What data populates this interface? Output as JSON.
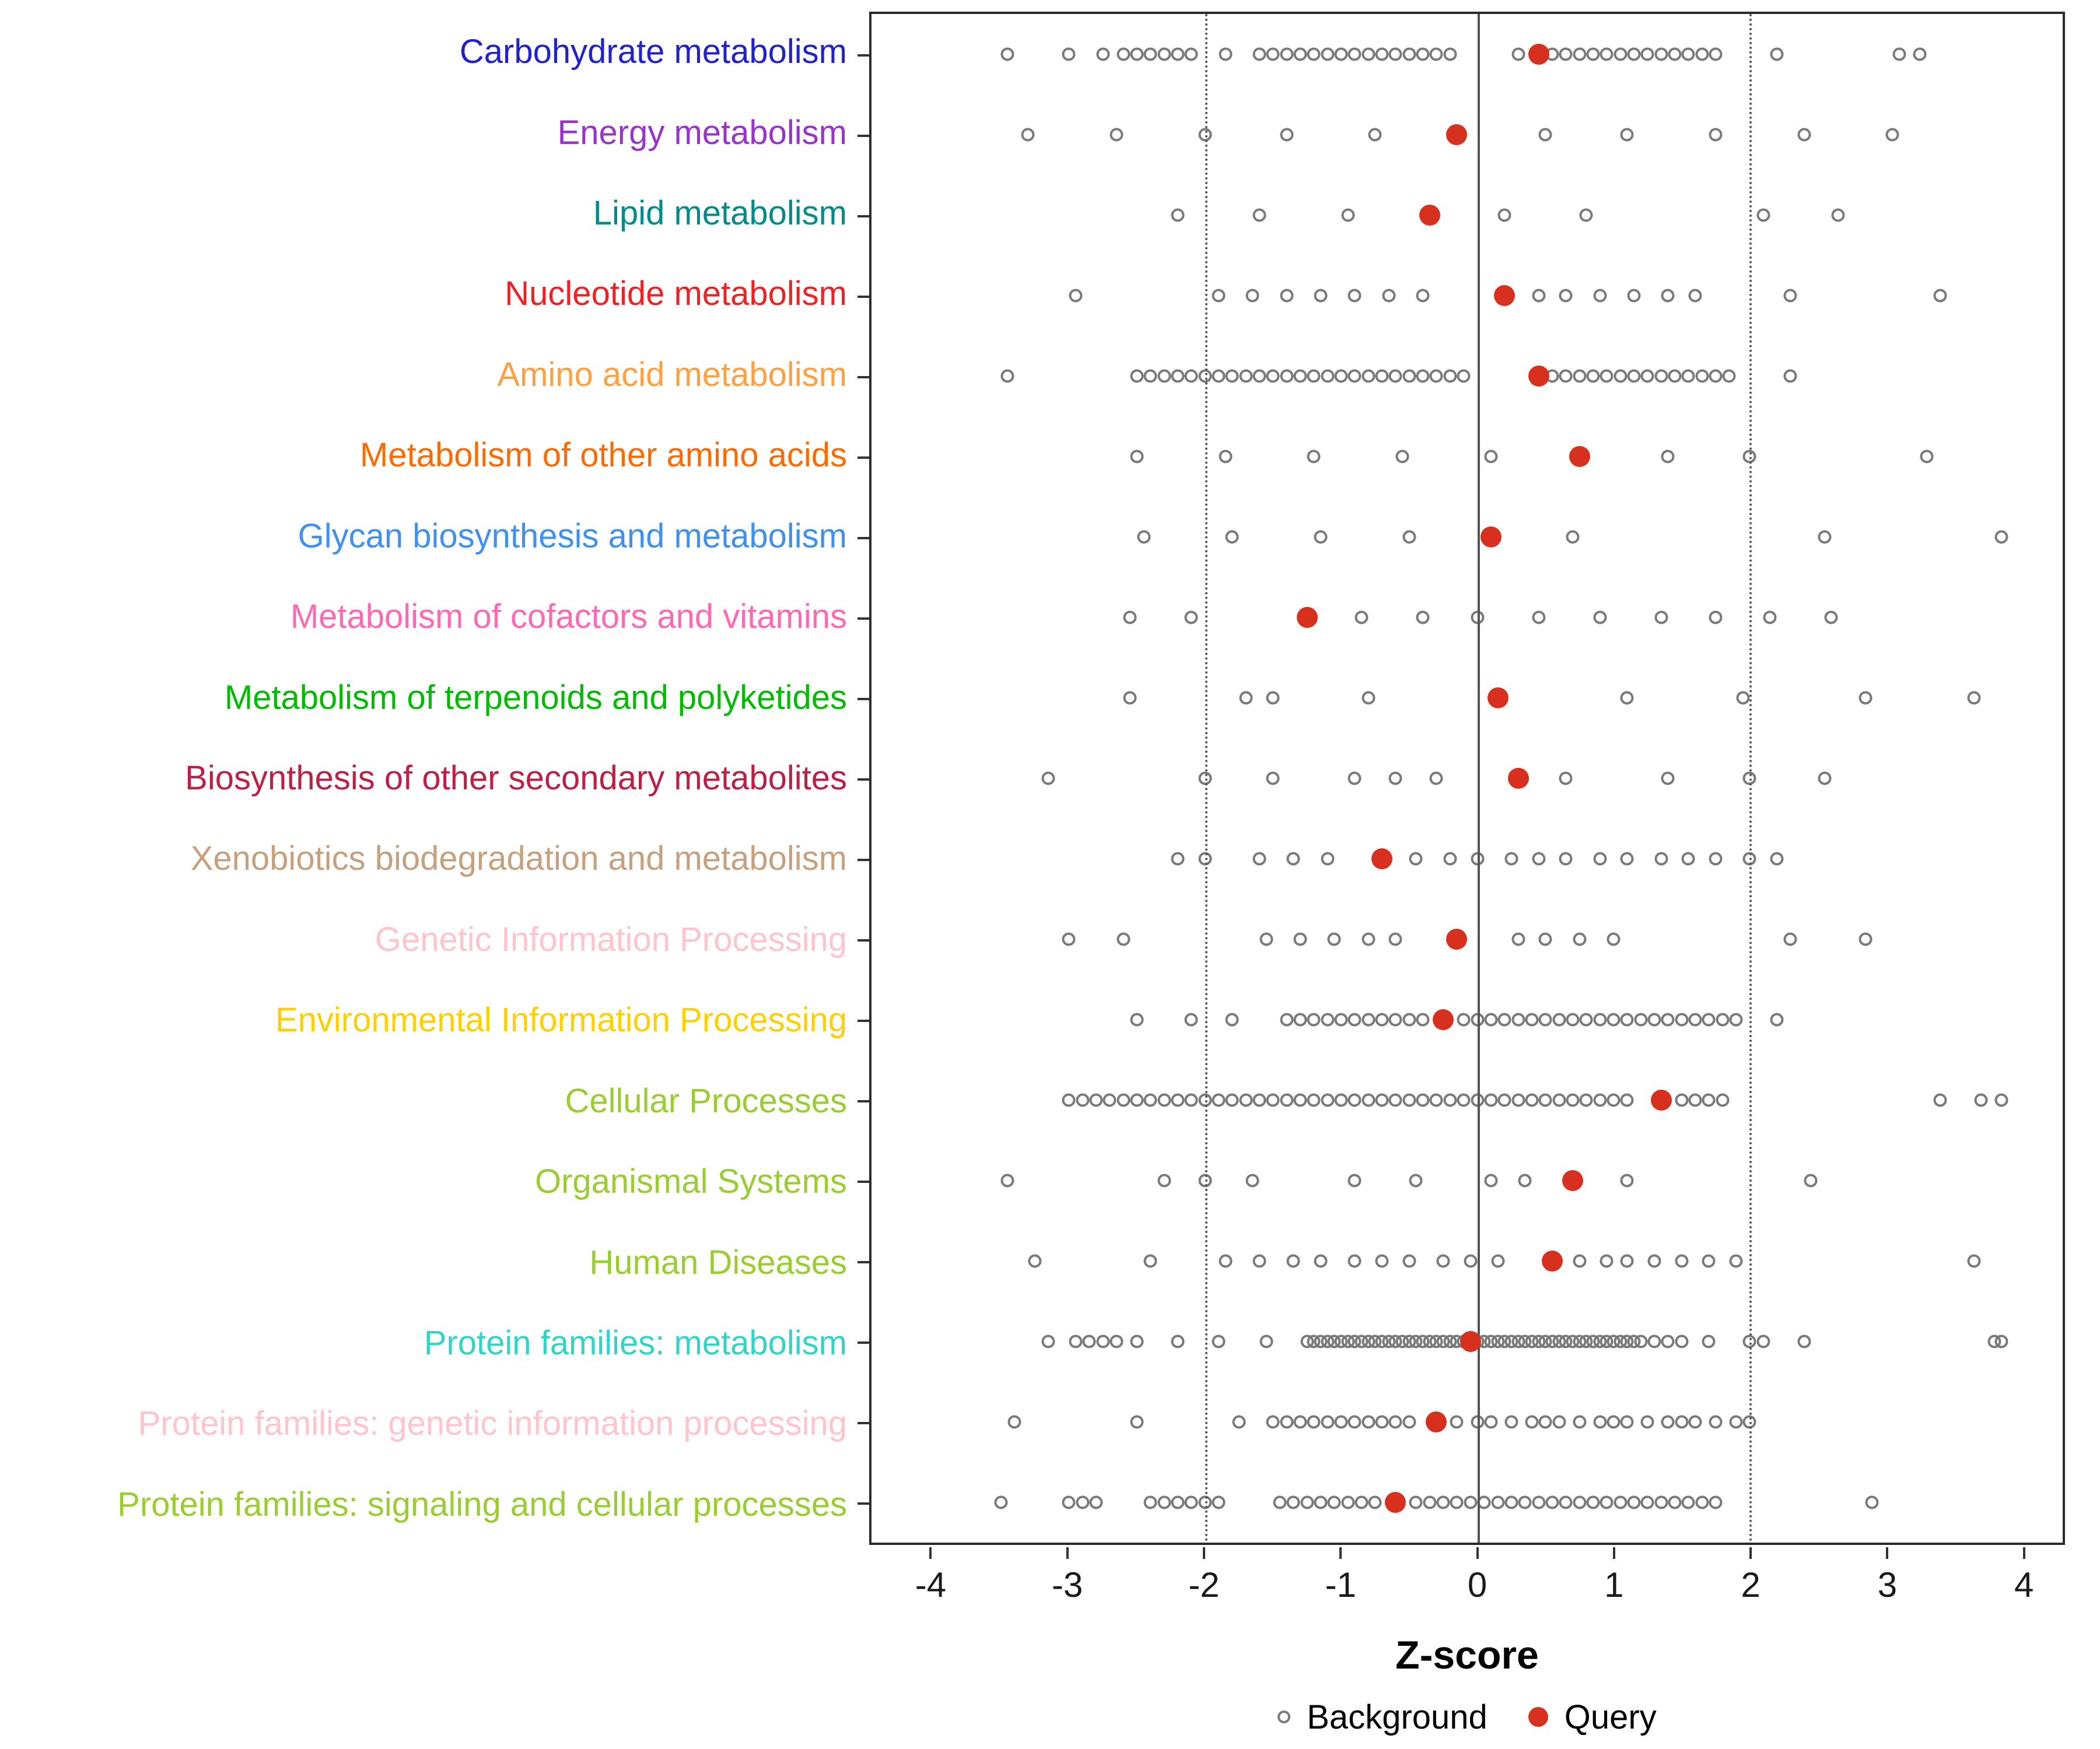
{
  "chart_data": {
    "type": "scatter",
    "subtype": "dot-strip-plot",
    "title": "",
    "xlabel": "Z-score",
    "ylabel": "",
    "xlim": [
      -4.45,
      4.3
    ],
    "x_ticks": [
      -4,
      -3,
      -2,
      -1,
      0,
      1,
      2,
      3,
      4
    ],
    "grid": false,
    "reference_lines": [
      {
        "x": -2,
        "style": "dotted"
      },
      {
        "x": 0,
        "style": "solid"
      },
      {
        "x": 2,
        "style": "dotted"
      }
    ],
    "colors": {
      "background_point": "#7a7a7a",
      "query_point": "#D7301F",
      "reference_line": "#555555",
      "panel_border": "#2b2b2b"
    },
    "legend": {
      "position": "bottom",
      "items": [
        {
          "label": "Background",
          "marker": "open-circle",
          "color": "#7a7a7a"
        },
        {
          "label": "Query",
          "marker": "filled-circle",
          "color": "#D7301F"
        }
      ]
    },
    "series": [
      {
        "label": "Carbohydrate metabolism",
        "color": "#2222CC",
        "query": 0.45,
        "background": [
          -3.45,
          -3.0,
          -2.75,
          -2.6,
          -2.5,
          -2.4,
          -2.3,
          -2.2,
          -2.1,
          -1.85,
          -1.6,
          -1.5,
          -1.4,
          -1.3,
          -1.2,
          -1.1,
          -1.0,
          -0.9,
          -0.8,
          -0.7,
          -0.6,
          -0.5,
          -0.4,
          -0.3,
          -0.2,
          0.3,
          0.55,
          0.65,
          0.75,
          0.85,
          0.95,
          1.05,
          1.15,
          1.25,
          1.35,
          1.45,
          1.55,
          1.65,
          1.75,
          2.2,
          3.1,
          3.25
        ]
      },
      {
        "label": "Energy metabolism",
        "color": "#9933CC",
        "query": -0.15,
        "background": [
          -3.3,
          -2.65,
          -2.0,
          -1.4,
          -0.75,
          0.5,
          1.1,
          1.75,
          2.4,
          3.05
        ]
      },
      {
        "label": "Lipid metabolism",
        "color": "#008B8B",
        "query": -0.35,
        "background": [
          -2.2,
          -1.6,
          -0.95,
          0.2,
          0.8,
          2.1,
          2.65
        ]
      },
      {
        "label": "Nucleotide metabolism",
        "color": "#EE2222",
        "query": 0.2,
        "background": [
          -2.95,
          -1.9,
          -1.65,
          -1.4,
          -1.15,
          -0.9,
          -0.65,
          -0.4,
          0.45,
          0.65,
          0.9,
          1.15,
          1.4,
          1.6,
          2.3,
          3.4
        ]
      },
      {
        "label": "Amino acid metabolism",
        "color": "#FFA040",
        "query": 0.45,
        "background": [
          -3.45,
          -2.5,
          -2.4,
          -2.3,
          -2.2,
          -2.1,
          -2.0,
          -1.9,
          -1.8,
          -1.7,
          -1.6,
          -1.5,
          -1.4,
          -1.3,
          -1.2,
          -1.1,
          -1.0,
          -0.9,
          -0.8,
          -0.7,
          -0.6,
          -0.5,
          -0.4,
          -0.3,
          -0.2,
          -0.1,
          0.55,
          0.65,
          0.75,
          0.85,
          0.95,
          1.05,
          1.15,
          1.25,
          1.35,
          1.45,
          1.55,
          1.65,
          1.75,
          1.85,
          2.3
        ]
      },
      {
        "label": "Metabolism of other amino acids",
        "color": "#FF6A00",
        "query": 0.75,
        "background": [
          -2.5,
          -1.85,
          -1.2,
          -0.55,
          0.1,
          1.4,
          2.0,
          3.3
        ]
      },
      {
        "label": "Glycan biosynthesis and metabolism",
        "color": "#4090F0",
        "query": 0.1,
        "background": [
          -2.45,
          -1.8,
          -1.15,
          -0.5,
          0.7,
          2.55,
          3.85
        ]
      },
      {
        "label": "Metabolism of cofactors and vitamins",
        "color": "#FF69B4",
        "query": -1.25,
        "background": [
          -2.55,
          -2.1,
          -0.85,
          -0.4,
          0.0,
          0.45,
          0.9,
          1.35,
          1.75,
          2.15,
          2.6
        ]
      },
      {
        "label": "Metabolism of terpenoids and polyketides",
        "color": "#00BB00",
        "query": 0.15,
        "background": [
          -2.55,
          -1.7,
          -1.5,
          -0.8,
          1.1,
          1.95,
          2.85,
          3.65
        ]
      },
      {
        "label": "Biosynthesis of other secondary metabolites",
        "color": "#BE2045",
        "query": 0.3,
        "background": [
          -3.15,
          -2.0,
          -1.5,
          -0.9,
          -0.6,
          -0.3,
          0.65,
          1.4,
          2.0,
          2.55
        ]
      },
      {
        "label": "Xenobiotics biodegradation and metabolism",
        "color": "#C7A17E",
        "query": -0.7,
        "background": [
          -2.2,
          -2.0,
          -1.6,
          -1.35,
          -1.1,
          -0.45,
          -0.2,
          0.0,
          0.25,
          0.45,
          0.65,
          0.9,
          1.1,
          1.35,
          1.55,
          1.75,
          2.0,
          2.2
        ]
      },
      {
        "label": "Genetic Information Processing",
        "color": "#FFC4CC",
        "query": -0.15,
        "background": [
          -3.0,
          -2.6,
          -1.55,
          -1.3,
          -1.05,
          -0.8,
          -0.6,
          0.3,
          0.5,
          0.75,
          1.0,
          2.3,
          2.85
        ]
      },
      {
        "label": "Environmental Information Processing",
        "color": "#FFD000",
        "query": -0.25,
        "background": [
          -2.5,
          -2.1,
          -1.8,
          -1.4,
          -1.3,
          -1.2,
          -1.1,
          -1.0,
          -0.9,
          -0.8,
          -0.7,
          -0.6,
          -0.5,
          -0.4,
          -0.1,
          0.0,
          0.1,
          0.2,
          0.3,
          0.4,
          0.5,
          0.6,
          0.7,
          0.8,
          0.9,
          1.0,
          1.1,
          1.2,
          1.3,
          1.4,
          1.5,
          1.6,
          1.7,
          1.8,
          1.9,
          2.2
        ]
      },
      {
        "label": "Cellular Processes",
        "color": "#9ACD32",
        "query": 1.35,
        "background": [
          -3.0,
          -2.9,
          -2.8,
          -2.7,
          -2.6,
          -2.5,
          -2.4,
          -2.3,
          -2.2,
          -2.1,
          -2.0,
          -1.9,
          -1.8,
          -1.7,
          -1.6,
          -1.5,
          -1.4,
          -1.3,
          -1.2,
          -1.1,
          -1.0,
          -0.9,
          -0.8,
          -0.7,
          -0.6,
          -0.5,
          -0.4,
          -0.3,
          -0.2,
          -0.1,
          0.0,
          0.1,
          0.2,
          0.3,
          0.4,
          0.5,
          0.6,
          0.7,
          0.8,
          0.9,
          1.0,
          1.1,
          1.5,
          1.6,
          1.7,
          1.8,
          3.4,
          3.7,
          3.85
        ]
      },
      {
        "label": "Organismal Systems",
        "color": "#9ACD32",
        "query": 0.7,
        "background": [
          -3.45,
          -2.3,
          -2.0,
          -1.65,
          -0.9,
          -0.45,
          0.1,
          0.35,
          1.1,
          2.45
        ]
      },
      {
        "label": "Human Diseases",
        "color": "#9ACD32",
        "query": 0.55,
        "background": [
          -3.25,
          -2.4,
          -1.85,
          -1.6,
          -1.35,
          -1.15,
          -0.9,
          -0.7,
          -0.5,
          -0.25,
          -0.05,
          0.15,
          0.75,
          0.95,
          1.1,
          1.3,
          1.5,
          1.7,
          1.9,
          3.65
        ]
      },
      {
        "label": "Protein families: metabolism",
        "color": "#30D5C8",
        "query": -0.05,
        "background": [
          -3.15,
          -2.95,
          -2.85,
          -2.75,
          -2.65,
          -2.5,
          -2.2,
          -1.9,
          -1.55,
          -1.25,
          -1.2,
          -1.15,
          -1.1,
          -1.05,
          -1.0,
          -0.95,
          -0.9,
          -0.85,
          -0.8,
          -0.75,
          -0.7,
          -0.65,
          -0.6,
          -0.55,
          -0.5,
          -0.45,
          -0.4,
          -0.35,
          -0.3,
          -0.25,
          -0.2,
          -0.15,
          -0.1,
          0.0,
          0.05,
          0.1,
          0.15,
          0.2,
          0.25,
          0.3,
          0.35,
          0.4,
          0.45,
          0.5,
          0.55,
          0.6,
          0.65,
          0.7,
          0.75,
          0.8,
          0.85,
          0.9,
          0.95,
          1.0,
          1.05,
          1.1,
          1.15,
          1.2,
          1.3,
          1.4,
          1.5,
          1.7,
          2.0,
          2.1,
          2.4,
          3.8,
          3.85
        ]
      },
      {
        "label": "Protein families: genetic information processing",
        "color": "#FFC4CC",
        "query": -0.3,
        "background": [
          -3.4,
          -2.5,
          -1.75,
          -1.5,
          -1.4,
          -1.3,
          -1.2,
          -1.1,
          -1.0,
          -0.9,
          -0.8,
          -0.7,
          -0.6,
          -0.5,
          -0.15,
          0.0,
          0.1,
          0.25,
          0.4,
          0.5,
          0.6,
          0.75,
          0.9,
          1.0,
          1.1,
          1.25,
          1.4,
          1.5,
          1.6,
          1.75,
          1.9,
          2.0
        ]
      },
      {
        "label": "Protein families: signaling and cellular processes",
        "color": "#9ACD32",
        "query": -0.6,
        "background": [
          -3.5,
          -3.0,
          -2.9,
          -2.8,
          -2.4,
          -2.3,
          -2.2,
          -2.1,
          -2.0,
          -1.9,
          -1.45,
          -1.35,
          -1.25,
          -1.15,
          -1.05,
          -0.95,
          -0.85,
          -0.75,
          -0.45,
          -0.35,
          -0.25,
          -0.15,
          -0.05,
          0.05,
          0.15,
          0.25,
          0.35,
          0.45,
          0.55,
          0.65,
          0.75,
          0.85,
          0.95,
          1.05,
          1.15,
          1.25,
          1.35,
          1.45,
          1.55,
          1.65,
          1.75,
          2.9
        ]
      }
    ]
  }
}
